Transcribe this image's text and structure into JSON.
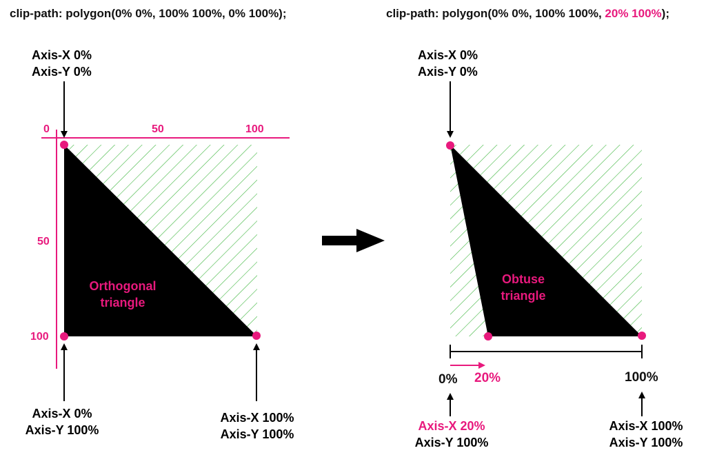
{
  "left": {
    "code_prefix": "clip-path: polygon(0% 0%, 100% 100%, 0% 100%);",
    "top_vertex": {
      "x": "Axis-X 0%",
      "y": "Axis-Y 0%"
    },
    "bottom_left_vertex": {
      "x": "Axis-X 0%",
      "y": "Axis-Y 100%"
    },
    "bottom_right_vertex": {
      "x": "Axis-X 100%",
      "y": "Axis-Y 100%"
    },
    "ruler_x": [
      "0",
      "50",
      "100"
    ],
    "ruler_y": [
      "50",
      "100"
    ],
    "shape_label": [
      "Orthogonal",
      "triangle"
    ]
  },
  "right": {
    "code_prefix": "clip-path: polygon(0% 0%, 100% 100%, ",
    "code_highlight": "20% 100%",
    "code_suffix": ");",
    "top_vertex": {
      "x": "Axis-X 0%",
      "y": "Axis-Y 0%"
    },
    "bottom_left_vertex": {
      "x": "Axis-X 20%",
      "y": "Axis-Y 100%"
    },
    "bottom_right_vertex": {
      "x": "Axis-X 100%",
      "y": "Axis-Y 100%"
    },
    "scale_start": "0%",
    "scale_shift": "20%",
    "scale_end": "100%",
    "shape_label": [
      "Obtuse",
      "triangle"
    ]
  },
  "colors": {
    "accent": "#e8197d",
    "hatch": "#3fb63f",
    "shape": "#000000"
  }
}
